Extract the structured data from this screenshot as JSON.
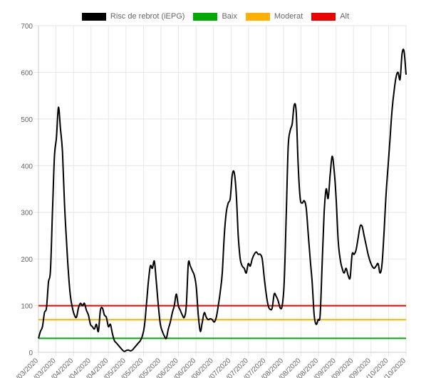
{
  "legend": [
    {
      "label": "Risc de rebrot (iEPG)",
      "color": "#000000"
    },
    {
      "label": "Baix",
      "color": "#00aa00"
    },
    {
      "label": "Moderat",
      "color": "#ffb000"
    },
    {
      "label": "Alt",
      "color": "#ee0000"
    }
  ],
  "chart_data": {
    "type": "line",
    "ylim": [
      0,
      700
    ],
    "yticks": [
      0,
      100,
      200,
      300,
      400,
      500,
      600,
      700
    ],
    "xtick_labels": [
      "…/03/2020",
      "…/03/2020",
      "…/04/2020",
      "…/04/2020",
      "…/04/2020",
      "…/05/2020",
      "…/05/2020",
      "…/05/2020",
      "…/06/2020",
      "…/06/2020",
      "…/06/2020",
      "…/07/2020",
      "…/07/2020",
      "…/07/2020",
      "…/08/2020",
      "…/08/2020",
      "…/08/2020",
      "…/09/2020",
      "…/09/2020",
      "…/09/2020",
      "…/10/2020",
      "…/10/2020"
    ],
    "grid": true,
    "legend_position": "top",
    "thresholds": [
      {
        "name": "Baix",
        "value": 30,
        "color": "#00aa00"
      },
      {
        "name": "Moderat",
        "value": 70,
        "color": "#ffb000"
      },
      {
        "name": "Alt",
        "value": 100,
        "color": "#ee0000"
      }
    ],
    "series": [
      {
        "name": "Risc de rebrot (iEPG)",
        "color": "#000000",
        "points": [
          [
            0,
            30
          ],
          [
            2,
            45
          ],
          [
            4,
            55
          ],
          [
            6,
            85
          ],
          [
            8,
            95
          ],
          [
            10,
            150
          ],
          [
            12,
            175
          ],
          [
            14,
            300
          ],
          [
            16,
            420
          ],
          [
            18,
            460
          ],
          [
            20,
            525
          ],
          [
            22,
            480
          ],
          [
            24,
            430
          ],
          [
            26,
            320
          ],
          [
            28,
            240
          ],
          [
            30,
            170
          ],
          [
            32,
            120
          ],
          [
            34,
            95
          ],
          [
            36,
            80
          ],
          [
            38,
            75
          ],
          [
            40,
            95
          ],
          [
            42,
            105
          ],
          [
            44,
            100
          ],
          [
            46,
            105
          ],
          [
            48,
            90
          ],
          [
            50,
            80
          ],
          [
            52,
            60
          ],
          [
            54,
            55
          ],
          [
            56,
            50
          ],
          [
            58,
            60
          ],
          [
            60,
            45
          ],
          [
            62,
            90
          ],
          [
            64,
            95
          ],
          [
            66,
            80
          ],
          [
            68,
            75
          ],
          [
            70,
            55
          ],
          [
            72,
            60
          ],
          [
            74,
            40
          ],
          [
            76,
            25
          ],
          [
            78,
            20
          ],
          [
            80,
            15
          ],
          [
            82,
            10
          ],
          [
            84,
            5
          ],
          [
            86,
            2
          ],
          [
            88,
            4
          ],
          [
            90,
            5
          ],
          [
            92,
            3
          ],
          [
            94,
            5
          ],
          [
            96,
            10
          ],
          [
            98,
            15
          ],
          [
            100,
            20
          ],
          [
            102,
            25
          ],
          [
            104,
            35
          ],
          [
            106,
            55
          ],
          [
            108,
            100
          ],
          [
            110,
            150
          ],
          [
            112,
            185
          ],
          [
            114,
            180
          ],
          [
            116,
            195
          ],
          [
            118,
            150
          ],
          [
            120,
            100
          ],
          [
            122,
            60
          ],
          [
            124,
            45
          ],
          [
            126,
            35
          ],
          [
            128,
            30
          ],
          [
            130,
            50
          ],
          [
            132,
            65
          ],
          [
            134,
            85
          ],
          [
            136,
            100
          ],
          [
            138,
            125
          ],
          [
            140,
            100
          ],
          [
            142,
            90
          ],
          [
            144,
            80
          ],
          [
            146,
            75
          ],
          [
            148,
            100
          ],
          [
            150,
            190
          ],
          [
            152,
            185
          ],
          [
            154,
            175
          ],
          [
            156,
            165
          ],
          [
            158,
            140
          ],
          [
            160,
            80
          ],
          [
            162,
            45
          ],
          [
            164,
            65
          ],
          [
            166,
            85
          ],
          [
            168,
            75
          ],
          [
            170,
            70
          ],
          [
            172,
            72
          ],
          [
            174,
            70
          ],
          [
            176,
            65
          ],
          [
            178,
            75
          ],
          [
            180,
            100
          ],
          [
            182,
            130
          ],
          [
            184,
            170
          ],
          [
            186,
            250
          ],
          [
            188,
            300
          ],
          [
            190,
            320
          ],
          [
            192,
            330
          ],
          [
            194,
            380
          ],
          [
            196,
            385
          ],
          [
            198,
            340
          ],
          [
            200,
            250
          ],
          [
            202,
            200
          ],
          [
            204,
            185
          ],
          [
            206,
            180
          ],
          [
            208,
            170
          ],
          [
            210,
            190
          ],
          [
            212,
            185
          ],
          [
            214,
            200
          ],
          [
            216,
            210
          ],
          [
            218,
            215
          ],
          [
            220,
            210
          ],
          [
            222,
            210
          ],
          [
            224,
            200
          ],
          [
            226,
            160
          ],
          [
            228,
            125
          ],
          [
            230,
            100
          ],
          [
            232,
            92
          ],
          [
            234,
            95
          ],
          [
            236,
            125
          ],
          [
            238,
            120
          ],
          [
            240,
            110
          ],
          [
            242,
            95
          ],
          [
            244,
            100
          ],
          [
            246,
            150
          ],
          [
            248,
            290
          ],
          [
            250,
            440
          ],
          [
            252,
            475
          ],
          [
            254,
            490
          ],
          [
            256,
            530
          ],
          [
            258,
            515
          ],
          [
            260,
            400
          ],
          [
            262,
            330
          ],
          [
            264,
            320
          ],
          [
            266,
            325
          ],
          [
            268,
            310
          ],
          [
            270,
            255
          ],
          [
            272,
            200
          ],
          [
            274,
            150
          ],
          [
            276,
            80
          ],
          [
            278,
            60
          ],
          [
            280,
            70
          ],
          [
            282,
            80
          ],
          [
            284,
            190
          ],
          [
            286,
            300
          ],
          [
            288,
            350
          ],
          [
            290,
            330
          ],
          [
            292,
            380
          ],
          [
            294,
            420
          ],
          [
            296,
            390
          ],
          [
            298,
            330
          ],
          [
            300,
            240
          ],
          [
            302,
            200
          ],
          [
            304,
            180
          ],
          [
            306,
            170
          ],
          [
            308,
            180
          ],
          [
            310,
            165
          ],
          [
            312,
            160
          ],
          [
            314,
            210
          ],
          [
            316,
            210
          ],
          [
            318,
            220
          ],
          [
            320,
            245
          ],
          [
            322,
            270
          ],
          [
            324,
            270
          ],
          [
            326,
            250
          ],
          [
            328,
            230
          ],
          [
            330,
            210
          ],
          [
            332,
            195
          ],
          [
            334,
            185
          ],
          [
            336,
            180
          ],
          [
            338,
            185
          ],
          [
            340,
            190
          ],
          [
            342,
            170
          ],
          [
            344,
            190
          ],
          [
            346,
            260
          ],
          [
            348,
            340
          ],
          [
            350,
            400
          ],
          [
            352,
            460
          ],
          [
            354,
            520
          ],
          [
            356,
            560
          ],
          [
            358,
            590
          ],
          [
            360,
            600
          ],
          [
            362,
            585
          ],
          [
            364,
            640
          ],
          [
            366,
            645
          ],
          [
            368,
            595
          ]
        ]
      }
    ]
  }
}
